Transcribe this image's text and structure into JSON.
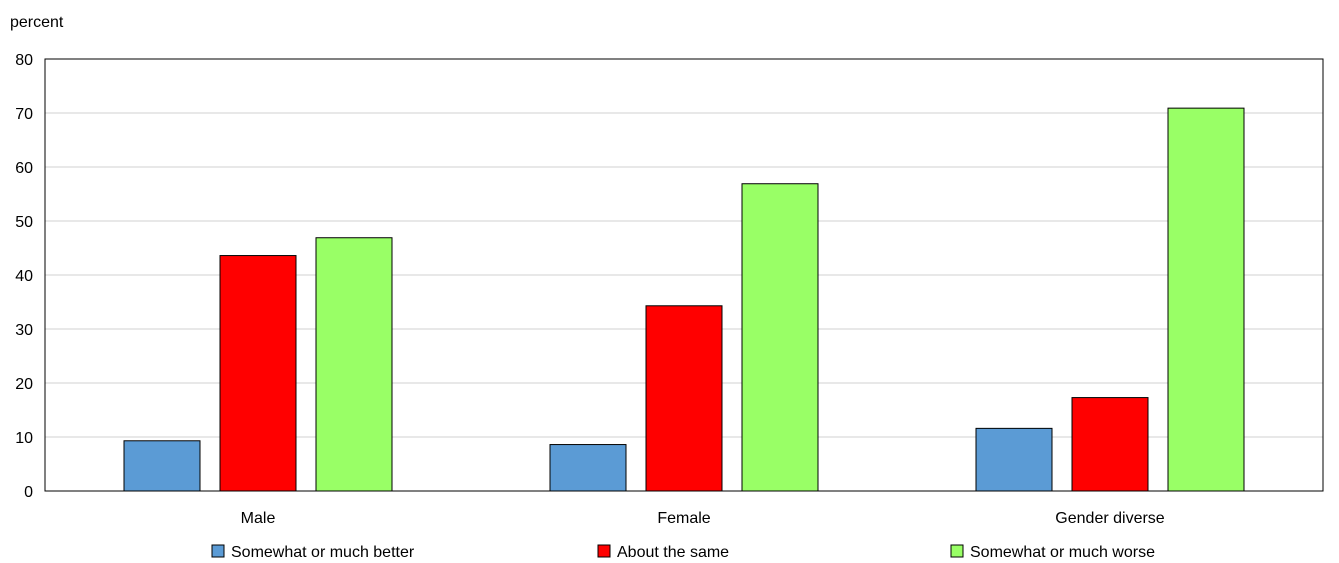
{
  "chart_data": {
    "type": "bar",
    "ylabel": "percent",
    "categories": [
      "Male",
      "Female",
      "Gender diverse"
    ],
    "series": [
      {
        "name": "Somewhat or much better",
        "color": "#5b9bd5",
        "values": [
          9.3,
          8.6,
          11.6
        ]
      },
      {
        "name": "About the same",
        "color": "#ff0000",
        "values": [
          43.6,
          34.3,
          17.3
        ]
      },
      {
        "name": "Somewhat or much worse",
        "color": "#99ff66",
        "values": [
          46.9,
          56.9,
          70.9
        ]
      }
    ],
    "ylim": [
      0,
      80
    ],
    "yticks": [
      0,
      10,
      20,
      30,
      40,
      50,
      60,
      70,
      80
    ],
    "grid": true,
    "legend_position": "bottom"
  }
}
